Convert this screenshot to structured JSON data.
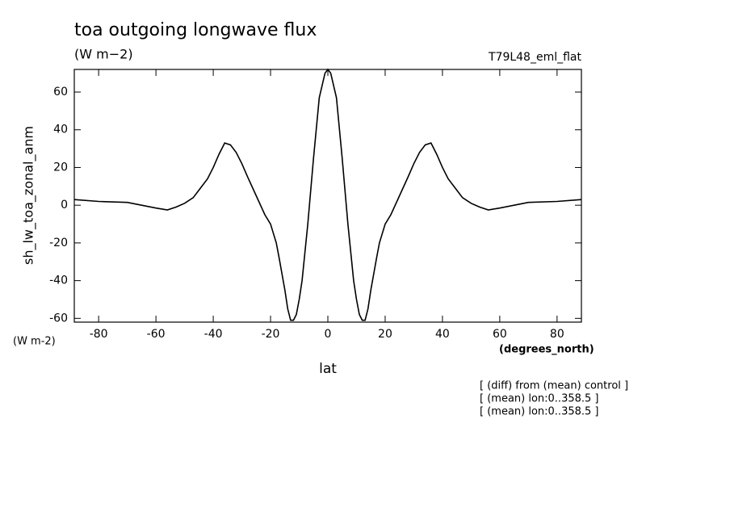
{
  "chart_data": {
    "type": "line",
    "title": "toa outgoing longwave flux",
    "subtitle": "(W m−2)",
    "experiment": "T79L48_eml_flat",
    "ylabel": "sh_lw_toa_zonal_anm",
    "y_units": "(W m-2)",
    "x_units": "(degrees_north)",
    "xlabel": "lat",
    "notes": [
      "[ (diff) from (mean) control ]",
      "[ (mean) lon:0..358.5 ]",
      "[ (mean) lon:0..358.5 ]"
    ],
    "x": [
      -88.5,
      -80,
      -70,
      -65,
      -60,
      -56,
      -53,
      -50,
      -47,
      -45,
      -42,
      -40,
      -38,
      -36,
      -34,
      -32,
      -30,
      -28,
      -25,
      -22,
      -20,
      -18,
      -17,
      -15,
      -14,
      -13,
      -12,
      -11,
      -10,
      -9,
      -7,
      -5,
      -3,
      -1,
      0,
      1,
      3,
      5,
      7,
      9,
      10,
      11,
      12,
      13,
      14,
      15,
      17,
      18,
      20,
      22,
      25,
      28,
      30,
      32,
      34,
      36,
      38,
      40,
      42,
      45,
      47,
      50,
      53,
      56,
      60,
      65,
      70,
      80,
      88.5
    ],
    "series": [
      {
        "name": "sh_lw_toa_zonal_anm",
        "color": "#000000",
        "values": [
          3,
          2,
          1.5,
          0,
          -1.5,
          -2.5,
          -1,
          1,
          4,
          8,
          14,
          20,
          27,
          33,
          32,
          28,
          22,
          15,
          5,
          -5,
          -10,
          -20,
          -28,
          -45,
          -55,
          -61,
          -61,
          -58,
          -50,
          -40,
          -10,
          25,
          57,
          70,
          72,
          70,
          57,
          25,
          -10,
          -40,
          -50,
          -58,
          -61,
          -61,
          -55,
          -45,
          -28,
          -20,
          -10,
          -5,
          5,
          15,
          22,
          28,
          32,
          33,
          27,
          20,
          14,
          8,
          4,
          1,
          -1,
          -2.5,
          -1.5,
          0,
          1.5,
          2,
          3
        ]
      }
    ],
    "xlim": [
      -88.5,
      88.5
    ],
    "ylim": [
      -62,
      72
    ],
    "xticks": [
      -80,
      -60,
      -40,
      -20,
      0,
      20,
      40,
      60,
      80
    ],
    "yticks": [
      -60,
      -40,
      -20,
      0,
      20,
      40,
      60
    ]
  }
}
